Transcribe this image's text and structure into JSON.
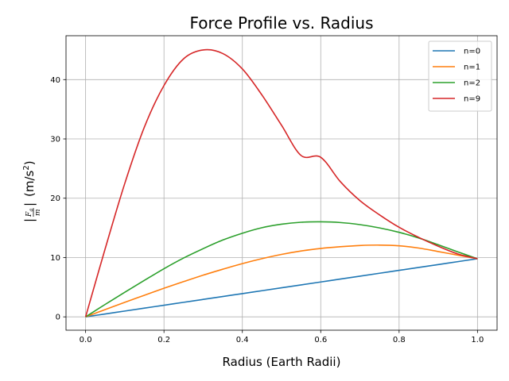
{
  "chart_data": {
    "type": "line",
    "title": "Force Profile vs. Radius",
    "xlabel": "Radius (Earth Radii)",
    "ylabel_parts": {
      "f_numerator": "F",
      "f_sub": "g",
      "denominator": "m",
      "units": "(m/s",
      "exp": "2",
      "units_close": ")"
    },
    "xlim": [
      -0.05,
      1.05
    ],
    "ylim": [
      -2.25,
      47.4
    ],
    "x_ticks": [
      0.0,
      0.2,
      0.4,
      0.6,
      0.8,
      1.0
    ],
    "x_tick_labels": [
      "0.0",
      "0.2",
      "0.4",
      "0.6",
      "0.8",
      "1.0"
    ],
    "y_ticks": [
      0,
      10,
      20,
      30,
      40
    ],
    "y_tick_labels": [
      "0",
      "10",
      "20",
      "30",
      "40"
    ],
    "grid": true,
    "legend_position": "top-right",
    "x": [
      0.0,
      0.05,
      0.1,
      0.15,
      0.2,
      0.25,
      0.3,
      0.35,
      0.4,
      0.45,
      0.5,
      0.55,
      0.6,
      0.65,
      0.7,
      0.75,
      0.8,
      0.85,
      0.9,
      0.95,
      1.0
    ],
    "series": [
      {
        "name": "n=0",
        "color": "#1f77b4",
        "values": [
          0.0,
          0.49,
          0.98,
          1.47,
          1.96,
          2.45,
          2.94,
          3.43,
          3.92,
          4.41,
          4.9,
          5.39,
          5.88,
          6.37,
          6.86,
          7.35,
          7.84,
          8.33,
          8.82,
          9.31,
          9.8
        ]
      },
      {
        "name": "n=1",
        "color": "#ff7f0e",
        "values": [
          0.0,
          1.23,
          2.45,
          3.64,
          4.82,
          5.94,
          7.03,
          8.03,
          8.98,
          9.81,
          10.53,
          11.11,
          11.53,
          11.82,
          12.03,
          12.1,
          11.98,
          11.6,
          11.01,
          10.4,
          9.8
        ]
      },
      {
        "name": "n=2",
        "color": "#2ca02c",
        "values": [
          0.0,
          2.1,
          4.15,
          6.15,
          8.12,
          9.92,
          11.5,
          12.95,
          14.1,
          15.03,
          15.62,
          15.95,
          16.02,
          15.9,
          15.55,
          15.0,
          14.25,
          13.3,
          12.15,
          10.95,
          9.8
        ]
      },
      {
        "name": "n=9",
        "color": "#d62728",
        "values": [
          0.0,
          11.5,
          22.5,
          32.0,
          39.0,
          43.5,
          45.0,
          44.4,
          41.8,
          37.4,
          32.3,
          27.2,
          26.9,
          22.8,
          19.6,
          17.2,
          15.1,
          13.4,
          11.9,
          10.6,
          9.8
        ]
      }
    ]
  }
}
